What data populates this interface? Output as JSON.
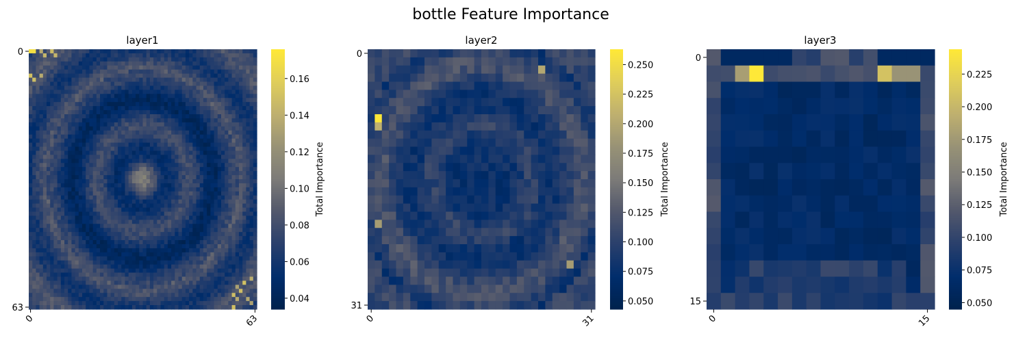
{
  "suptitle": "bottle Feature Importance",
  "chart_data": [
    {
      "type": "heatmap",
      "title": "layer1",
      "grid_size": 64,
      "x_ticks": [
        "0",
        "63"
      ],
      "y_ticks": [
        "0",
        "63"
      ],
      "colormap": "cividis",
      "colorbar": {
        "label": "Total Importance",
        "range": [
          0.034,
          0.176
        ],
        "ticks": [
          "0.04",
          "0.06",
          "0.08",
          "0.10",
          "0.12",
          "0.14",
          "0.16"
        ]
      },
      "pattern": "concentric rings; center ~0.10, ring ~0.05, hot corners up to ~0.17"
    },
    {
      "type": "heatmap",
      "title": "layer2",
      "grid_size": 32,
      "x_ticks": [
        "0",
        "31"
      ],
      "y_ticks": [
        "0",
        "31"
      ],
      "colormap": "cividis",
      "colorbar": {
        "label": "Total Importance",
        "range": [
          0.043,
          0.263
        ],
        "ticks": [
          "0.050",
          "0.075",
          "0.100",
          "0.125",
          "0.150",
          "0.175",
          "0.200",
          "0.225",
          "0.250"
        ]
      },
      "pattern": "ring of ~0.15-0.20 with max ~0.26 at upper-left, dark interior ~0.06"
    },
    {
      "type": "heatmap",
      "title": "layer3",
      "grid_size": 16,
      "x_ticks": [
        "0",
        "15"
      ],
      "y_ticks": [
        "0",
        "15"
      ],
      "colormap": "cividis",
      "colorbar": {
        "label": "Total Importance",
        "range": [
          0.045,
          0.244
        ],
        "ticks": [
          "0.050",
          "0.075",
          "0.100",
          "0.125",
          "0.150",
          "0.175",
          "0.200",
          "0.225"
        ]
      },
      "pattern": "hot cells in row 1 (cols 3 and 12-14), dark interior ~0.06, edges ~0.11"
    }
  ]
}
